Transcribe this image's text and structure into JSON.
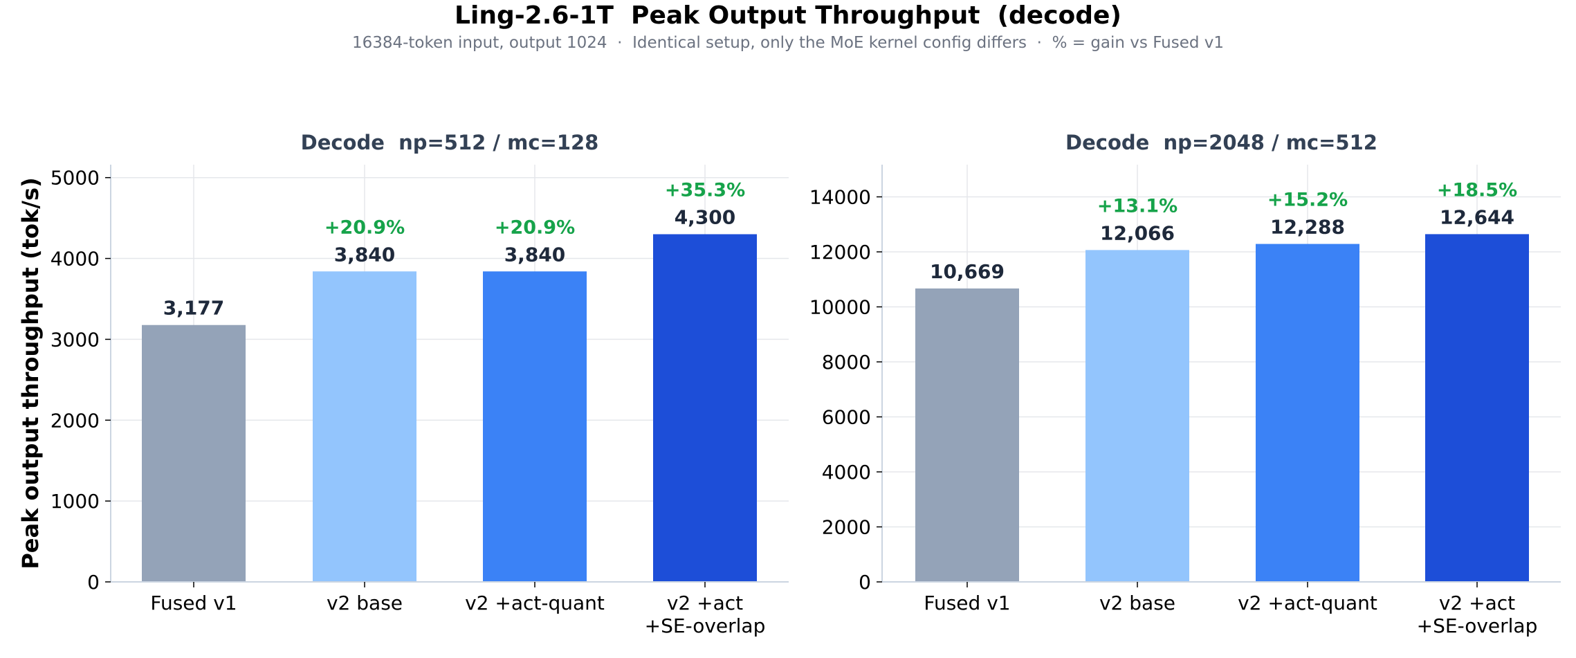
{
  "title": "Ling-2.6-1T  Peak Output Throughput  (decode)",
  "subtitle": "16384-token input, output 1024  ·  Identical setup, only the MoE kernel config differs  ·  % = gain vs Fused v1",
  "colors": {
    "fused_v1": "#94a3b8",
    "v2_base": "#93c5fd",
    "v2_act_quant": "#3b82f6",
    "v2_act_se_overlap": "#1d4ed8",
    "gain_text": "#16a34a",
    "value_text": "#1e293b",
    "panel_title": "#334155",
    "grid": "#e5e7eb",
    "axis": "#cbd5e1"
  },
  "chart_data": [
    {
      "type": "bar",
      "title": "Decode  np=512 / mc=128",
      "ylabel": "Peak output throughput (tok/s)",
      "categories": [
        "Fused v1",
        "v2 base",
        "v2 +act-quant",
        "v2 +act\n+SE-overlap"
      ],
      "values": [
        3177,
        3840,
        3840,
        4300
      ],
      "value_labels": [
        "3,177",
        "3,840",
        "3,840",
        "4,300"
      ],
      "gain_labels": [
        "",
        "+20.9%",
        "+20.9%",
        "+35.3%"
      ],
      "yticks": [
        0,
        1000,
        2000,
        3000,
        4000,
        5000
      ],
      "ylim": [
        0,
        5160
      ],
      "grid": true
    },
    {
      "type": "bar",
      "title": "Decode  np=2048 / mc=512",
      "ylabel": "",
      "categories": [
        "Fused v1",
        "v2 base",
        "v2 +act-quant",
        "v2 +act\n+SE-overlap"
      ],
      "values": [
        10669,
        12066,
        12288,
        12644
      ],
      "value_labels": [
        "10,669",
        "12,066",
        "12,288",
        "12,644"
      ],
      "gain_labels": [
        "",
        "+13.1%",
        "+15.2%",
        "+18.5%"
      ],
      "yticks": [
        0,
        2000,
        4000,
        6000,
        8000,
        10000,
        12000,
        14000
      ],
      "ylim": [
        0,
        15170
      ],
      "grid": true
    }
  ]
}
